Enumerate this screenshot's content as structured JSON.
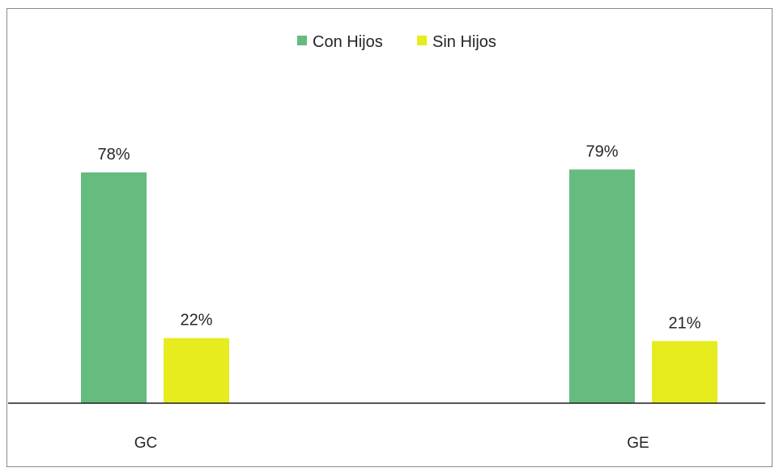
{
  "chart_data": {
    "type": "bar",
    "categories": [
      "GC",
      "GE"
    ],
    "series": [
      {
        "name": "Con Hijos",
        "color": "#66bb7f",
        "values": [
          78,
          79
        ],
        "labels": [
          "78%",
          "79%"
        ]
      },
      {
        "name": "Sin Hijos",
        "color": "#e6ec1e",
        "values": [
          22,
          21
        ],
        "labels": [
          "22%",
          "21%"
        ]
      }
    ],
    "value_unit": "%",
    "legend_position": "top-center",
    "grid": false,
    "axis_line_color": "#1f1f1f",
    "ylim": [
      0,
      100
    ]
  }
}
